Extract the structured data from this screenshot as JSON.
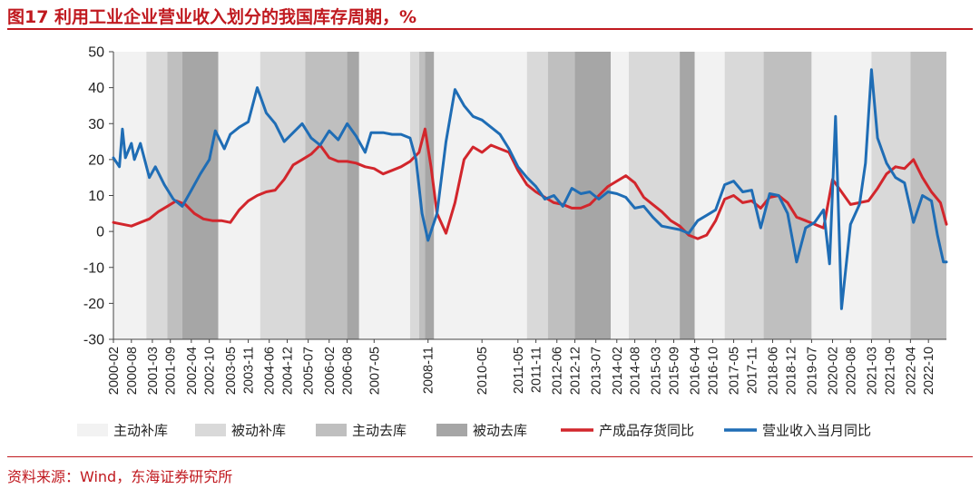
{
  "title": "图17  利用工业企业营业收入划分的我国库存周期，%",
  "source": "资料来源：Wind，东海证券研究所",
  "colors": {
    "accent": "#c0191f",
    "inventory_line": "#d2262c",
    "revenue_line": "#1f6db5",
    "phase_active_restock": "#f2f2f2",
    "phase_passive_restock": "#d9d9d9",
    "phase_active_destock": "#bfbfbf",
    "phase_passive_destock": "#a6a6a6"
  },
  "chart_data": {
    "type": "line",
    "title": "利用工业企业营业收入划分的我国库存周期，%",
    "ylim": [
      -30,
      50
    ],
    "yticks": [
      50,
      40,
      30,
      20,
      10,
      0,
      -10,
      -20,
      -30
    ],
    "xlim": [
      "2000-02",
      "2023-04"
    ],
    "xtick_labels": [
      "2000-02",
      "2000-08",
      "2001-03",
      "2001-09",
      "2002-04",
      "2002-10",
      "2003-05",
      "2003-11",
      "2004-06",
      "2004-12",
      "2005-07",
      "2006-02",
      "2006-08",
      "2007-05",
      "2008-11",
      "2010-05",
      "2011-05",
      "2011-11",
      "2012-06",
      "2012-12",
      "2013-07",
      "2014-02",
      "2014-08",
      "2015-03",
      "2015-09",
      "2016-04",
      "2016-10",
      "2017-05",
      "2017-11",
      "2018-06",
      "2018-12",
      "2019-07",
      "2020-02",
      "2020-08",
      "2021-03",
      "2021-09",
      "2022-04",
      "2022-10"
    ],
    "phases": [
      {
        "start": "2000-02",
        "end": "2001-01",
        "type": "主动补库"
      },
      {
        "start": "2001-01",
        "end": "2001-08",
        "type": "被动补库"
      },
      {
        "start": "2001-08",
        "end": "2002-01",
        "type": "主动去库"
      },
      {
        "start": "2002-01",
        "end": "2003-01",
        "type": "被动去库"
      },
      {
        "start": "2003-01",
        "end": "2004-03",
        "type": "主动补库"
      },
      {
        "start": "2004-03",
        "end": "2005-06",
        "type": "被动补库"
      },
      {
        "start": "2005-06",
        "end": "2006-08",
        "type": "主动去库"
      },
      {
        "start": "2006-08",
        "end": "2006-12",
        "type": "被动去库"
      },
      {
        "start": "2006-12",
        "end": "2008-05",
        "type": "主动补库"
      },
      {
        "start": "2008-05",
        "end": "2008-08",
        "type": "被动补库"
      },
      {
        "start": "2008-08",
        "end": "2008-10",
        "type": "主动去库"
      },
      {
        "start": "2008-10",
        "end": "2009-01",
        "type": "被动去库"
      },
      {
        "start": "2009-01",
        "end": "2011-08",
        "type": "主动补库"
      },
      {
        "start": "2011-08",
        "end": "2012-03",
        "type": "被动补库"
      },
      {
        "start": "2012-03",
        "end": "2012-12",
        "type": "主动去库"
      },
      {
        "start": "2012-12",
        "end": "2013-12",
        "type": "被动去库"
      },
      {
        "start": "2013-12",
        "end": "2014-06",
        "type": "主动补库"
      },
      {
        "start": "2014-06",
        "end": "2015-11",
        "type": "被动补库"
      },
      {
        "start": "2015-11",
        "end": "2016-04",
        "type": "被动去库"
      },
      {
        "start": "2016-04",
        "end": "2017-02",
        "type": "主动补库"
      },
      {
        "start": "2017-02",
        "end": "2018-03",
        "type": "被动补库"
      },
      {
        "start": "2018-03",
        "end": "2019-07",
        "type": "主动去库"
      },
      {
        "start": "2019-07",
        "end": "2021-03",
        "type": "主动补库"
      },
      {
        "start": "2021-03",
        "end": "2022-04",
        "type": "被动补库"
      },
      {
        "start": "2022-04",
        "end": "2023-04",
        "type": "主动去库"
      }
    ],
    "series": [
      {
        "name": "产成品存货同比",
        "color": "#d2262c",
        "points": [
          [
            "2000-02",
            2.5
          ],
          [
            "2000-05",
            2.0
          ],
          [
            "2000-08",
            1.5
          ],
          [
            "2000-11",
            2.5
          ],
          [
            "2001-02",
            3.5
          ],
          [
            "2001-05",
            5.5
          ],
          [
            "2001-08",
            7.0
          ],
          [
            "2001-11",
            8.5
          ],
          [
            "2002-02",
            7.5
          ],
          [
            "2002-05",
            5.0
          ],
          [
            "2002-08",
            3.5
          ],
          [
            "2002-11",
            3.0
          ],
          [
            "2003-02",
            3.0
          ],
          [
            "2003-05",
            2.5
          ],
          [
            "2003-08",
            6.0
          ],
          [
            "2003-11",
            8.5
          ],
          [
            "2004-02",
            10.0
          ],
          [
            "2004-05",
            11.0
          ],
          [
            "2004-08",
            11.5
          ],
          [
            "2004-11",
            14.5
          ],
          [
            "2005-02",
            18.5
          ],
          [
            "2005-05",
            20.0
          ],
          [
            "2005-08",
            21.5
          ],
          [
            "2005-11",
            24.0
          ],
          [
            "2006-02",
            20.5
          ],
          [
            "2006-05",
            19.5
          ],
          [
            "2006-08",
            19.5
          ],
          [
            "2006-11",
            19.0
          ],
          [
            "2007-02",
            18.0
          ],
          [
            "2007-05",
            17.5
          ],
          [
            "2007-08",
            16.0
          ],
          [
            "2007-11",
            17.0
          ],
          [
            "2008-02",
            18.0
          ],
          [
            "2008-05",
            19.5
          ],
          [
            "2008-08",
            22.0
          ],
          [
            "2008-10",
            28.5
          ],
          [
            "2008-12",
            18.0
          ],
          [
            "2009-02",
            5.0
          ],
          [
            "2009-05",
            -0.5
          ],
          [
            "2009-08",
            8.0
          ],
          [
            "2009-11",
            20.0
          ],
          [
            "2010-02",
            23.5
          ],
          [
            "2010-05",
            22.0
          ],
          [
            "2010-08",
            24.0
          ],
          [
            "2010-11",
            23.0
          ],
          [
            "2011-02",
            22.0
          ],
          [
            "2011-05",
            17.0
          ],
          [
            "2011-08",
            13.0
          ],
          [
            "2011-11",
            11.0
          ],
          [
            "2012-02",
            9.5
          ],
          [
            "2012-05",
            8.0
          ],
          [
            "2012-08",
            7.5
          ],
          [
            "2012-11",
            6.5
          ],
          [
            "2013-02",
            6.5
          ],
          [
            "2013-05",
            7.5
          ],
          [
            "2013-08",
            10.0
          ],
          [
            "2013-11",
            12.5
          ],
          [
            "2014-02",
            14.0
          ],
          [
            "2014-05",
            15.5
          ],
          [
            "2014-08",
            13.5
          ],
          [
            "2014-11",
            9.5
          ],
          [
            "2015-02",
            7.5
          ],
          [
            "2015-05",
            5.5
          ],
          [
            "2015-08",
            3.0
          ],
          [
            "2015-11",
            1.5
          ],
          [
            "2016-02",
            -1.0
          ],
          [
            "2016-05",
            -2.0
          ],
          [
            "2016-08",
            -1.0
          ],
          [
            "2016-11",
            3.0
          ],
          [
            "2017-02",
            9.0
          ],
          [
            "2017-05",
            10.0
          ],
          [
            "2017-08",
            8.0
          ],
          [
            "2017-11",
            8.5
          ],
          [
            "2018-02",
            6.5
          ],
          [
            "2018-05",
            9.5
          ],
          [
            "2018-08",
            10.0
          ],
          [
            "2018-11",
            8.0
          ],
          [
            "2019-02",
            4.0
          ],
          [
            "2019-05",
            3.0
          ],
          [
            "2019-08",
            2.0
          ],
          [
            "2019-11",
            1.0
          ],
          [
            "2020-02",
            14.5
          ],
          [
            "2020-05",
            11.0
          ],
          [
            "2020-08",
            7.5
          ],
          [
            "2020-11",
            8.0
          ],
          [
            "2021-02",
            8.5
          ],
          [
            "2021-05",
            12.0
          ],
          [
            "2021-08",
            16.0
          ],
          [
            "2021-11",
            18.0
          ],
          [
            "2022-02",
            17.5
          ],
          [
            "2022-05",
            20.0
          ],
          [
            "2022-08",
            15.0
          ],
          [
            "2022-11",
            11.0
          ],
          [
            "2023-02",
            8.0
          ],
          [
            "2023-04",
            2.0
          ]
        ]
      },
      {
        "name": "营业收入当月同比",
        "color": "#1f6db5",
        "points": [
          [
            "2000-02",
            20.5
          ],
          [
            "2000-04",
            18.0
          ],
          [
            "2000-05",
            28.5
          ],
          [
            "2000-06",
            20.5
          ],
          [
            "2000-08",
            24.5
          ],
          [
            "2000-09",
            20.0
          ],
          [
            "2000-11",
            24.5
          ],
          [
            "2001-02",
            15.0
          ],
          [
            "2001-04",
            18.0
          ],
          [
            "2001-07",
            13.0
          ],
          [
            "2001-10",
            9.0
          ],
          [
            "2002-01",
            7.0
          ],
          [
            "2002-04",
            11.5
          ],
          [
            "2002-07",
            16.0
          ],
          [
            "2002-10",
            20.0
          ],
          [
            "2002-12",
            28.0
          ],
          [
            "2003-03",
            23.0
          ],
          [
            "2003-05",
            27.0
          ],
          [
            "2003-08",
            29.0
          ],
          [
            "2003-11",
            30.5
          ],
          [
            "2004-02",
            40.0
          ],
          [
            "2004-05",
            33.0
          ],
          [
            "2004-08",
            30.0
          ],
          [
            "2004-11",
            25.0
          ],
          [
            "2005-02",
            27.5
          ],
          [
            "2005-05",
            30.0
          ],
          [
            "2005-08",
            26.0
          ],
          [
            "2005-11",
            24.0
          ],
          [
            "2006-02",
            28.0
          ],
          [
            "2006-05",
            25.5
          ],
          [
            "2006-08",
            30.0
          ],
          [
            "2006-11",
            26.5
          ],
          [
            "2007-02",
            22.0
          ],
          [
            "2007-04",
            27.5
          ],
          [
            "2007-08",
            27.5
          ],
          [
            "2007-11",
            27.0
          ],
          [
            "2008-02",
            27.0
          ],
          [
            "2008-05",
            26.0
          ],
          [
            "2008-07",
            20.0
          ],
          [
            "2008-09",
            5.0
          ],
          [
            "2008-11",
            -2.5
          ],
          [
            "2009-02",
            5.0
          ],
          [
            "2009-05",
            25.0
          ],
          [
            "2009-08",
            39.5
          ],
          [
            "2009-11",
            35.0
          ],
          [
            "2010-02",
            32.0
          ],
          [
            "2010-05",
            31.0
          ],
          [
            "2010-08",
            29.0
          ],
          [
            "2010-11",
            27.0
          ],
          [
            "2011-02",
            23.0
          ],
          [
            "2011-05",
            18.0
          ],
          [
            "2011-08",
            15.0
          ],
          [
            "2011-11",
            12.5
          ],
          [
            "2012-02",
            9.0
          ],
          [
            "2012-05",
            10.0
          ],
          [
            "2012-08",
            7.0
          ],
          [
            "2012-11",
            12.0
          ],
          [
            "2013-02",
            10.5
          ],
          [
            "2013-05",
            11.0
          ],
          [
            "2013-08",
            9.0
          ],
          [
            "2013-11",
            11.0
          ],
          [
            "2014-02",
            10.5
          ],
          [
            "2014-05",
            9.5
          ],
          [
            "2014-08",
            6.5
          ],
          [
            "2014-11",
            7.0
          ],
          [
            "2015-02",
            4.0
          ],
          [
            "2015-05",
            1.5
          ],
          [
            "2015-08",
            1.0
          ],
          [
            "2015-11",
            0.5
          ],
          [
            "2016-02",
            -0.5
          ],
          [
            "2016-05",
            3.0
          ],
          [
            "2016-08",
            4.5
          ],
          [
            "2016-11",
            6.0
          ],
          [
            "2017-02",
            13.0
          ],
          [
            "2017-05",
            14.0
          ],
          [
            "2017-08",
            11.0
          ],
          [
            "2017-11",
            11.5
          ],
          [
            "2018-02",
            1.0
          ],
          [
            "2018-05",
            10.5
          ],
          [
            "2018-08",
            10.0
          ],
          [
            "2018-11",
            5.0
          ],
          [
            "2019-02",
            -8.5
          ],
          [
            "2019-05",
            1.0
          ],
          [
            "2019-08",
            2.5
          ],
          [
            "2019-11",
            6.0
          ],
          [
            "2020-01",
            -9.0
          ],
          [
            "2020-03",
            32.0
          ],
          [
            "2020-05",
            -21.5
          ],
          [
            "2020-08",
            2.0
          ],
          [
            "2020-11",
            7.5
          ],
          [
            "2021-01",
            19.0
          ],
          [
            "2021-03",
            45.0
          ],
          [
            "2021-05",
            26.0
          ],
          [
            "2021-08",
            19.0
          ],
          [
            "2021-11",
            15.0
          ],
          [
            "2022-02",
            13.5
          ],
          [
            "2022-05",
            2.5
          ],
          [
            "2022-08",
            10.0
          ],
          [
            "2022-11",
            8.5
          ],
          [
            "2023-01",
            -1.0
          ],
          [
            "2023-03",
            -8.5
          ],
          [
            "2023-04",
            -8.5
          ]
        ]
      }
    ],
    "legend": {
      "placement": "bottom",
      "items": [
        {
          "label": "主动补库",
          "kind": "box",
          "color": "#f2f2f2"
        },
        {
          "label": "被动补库",
          "kind": "box",
          "color": "#d9d9d9"
        },
        {
          "label": "主动去库",
          "kind": "box",
          "color": "#bfbfbf"
        },
        {
          "label": "被动去库",
          "kind": "box",
          "color": "#a6a6a6"
        },
        {
          "label": "产成品存货同比",
          "kind": "line",
          "color": "#d2262c"
        },
        {
          "label": "营业收入当月同比",
          "kind": "line",
          "color": "#1f6db5"
        }
      ]
    }
  }
}
